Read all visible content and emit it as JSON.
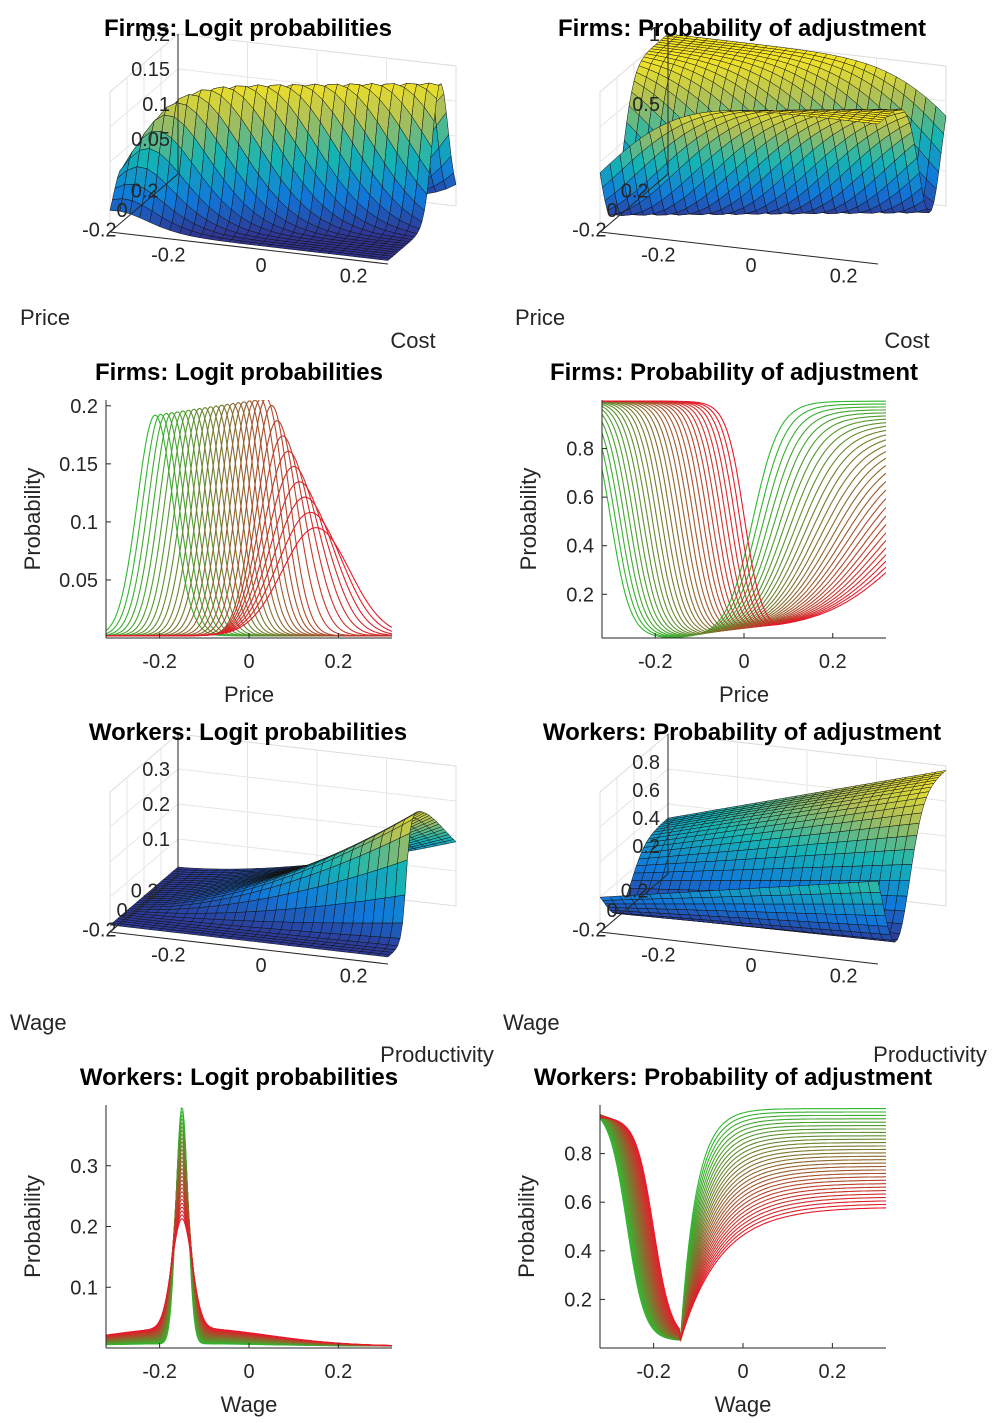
{
  "chart_data": [
    {
      "type": "surface",
      "title": "Firms: Logit probabilities",
      "xlabel": "Cost",
      "ylabel": "Price",
      "x_ticks": [
        "-0.2",
        "0",
        "0.2"
      ],
      "y_ticks": [
        "-0.2",
        "0",
        "0.2"
      ],
      "z_ticks": [
        "0.05",
        "0.1",
        "0.15",
        "0.2"
      ],
      "x_range": [
        -0.3,
        0.3
      ],
      "y_range": [
        -0.3,
        0.3
      ],
      "z_range": [
        0,
        0.2
      ],
      "colormap": "parula",
      "grid": true
    },
    {
      "type": "surface",
      "title": "Firms: Probability of adjustment",
      "xlabel": "Cost",
      "ylabel": "Price",
      "x_ticks": [
        "-0.2",
        "0",
        "0.2"
      ],
      "y_ticks": [
        "-0.2",
        "0",
        "0.2"
      ],
      "z_ticks": [
        "0.5",
        "1"
      ],
      "x_range": [
        -0.3,
        0.3
      ],
      "y_range": [
        -0.3,
        0.3
      ],
      "z_range": [
        0,
        1
      ],
      "colormap": "parula",
      "grid": true
    },
    {
      "type": "line",
      "title": "Firms: Logit probabilities",
      "xlabel": "Price",
      "ylabel": "Probability",
      "x_ticks": [
        "-0.2",
        "0",
        "0.2"
      ],
      "y_ticks": [
        "0.05",
        "0.1",
        "0.15",
        "0.2"
      ],
      "xlim": [
        -0.32,
        0.32
      ],
      "ylim": [
        0,
        0.205
      ],
      "series_count": 30,
      "color_gradient": [
        "#2fb82f",
        "#e8182a"
      ],
      "peak_x_range": [
        -0.21,
        0.15
      ],
      "peak_y_range": [
        0.19,
        0.093
      ],
      "series_note": "shapes only"
    },
    {
      "type": "line",
      "title": "Firms: Probability of adjustment",
      "xlabel": "Price",
      "ylabel": "Probability",
      "x_ticks": [
        "-0.2",
        "0",
        "0.2"
      ],
      "y_ticks": [
        "0.2",
        "0.4",
        "0.6",
        "0.8"
      ],
      "xlim": [
        -0.32,
        0.32
      ],
      "ylim": [
        0.02,
        1.0
      ],
      "series_count": 30,
      "color_gradient": [
        "#2fb82f",
        "#e8182a"
      ]
    },
    {
      "type": "surface",
      "title": "Workers: Logit probabilities",
      "xlabel": "Productivity",
      "ylabel": "Wage",
      "x_ticks": [
        "-0.2",
        "0",
        "0.2"
      ],
      "y_ticks": [
        "-0.2",
        "0",
        "0.2"
      ],
      "z_ticks": [
        "0.1",
        "0.2",
        "0.3"
      ],
      "x_range": [
        -0.3,
        0.3
      ],
      "y_range": [
        -0.3,
        0.3
      ],
      "z_range": [
        0,
        0.4
      ],
      "colormap": "parula",
      "grid": true
    },
    {
      "type": "surface",
      "title": "Workers: Probability of adjustment",
      "xlabel": "Productivity",
      "ylabel": "Wage",
      "x_ticks": [
        "-0.2",
        "0",
        "0.2"
      ],
      "y_ticks": [
        "-0.2",
        "0",
        "0.2"
      ],
      "z_ticks": [
        "0.2",
        "0.4",
        "0.6",
        "0.8"
      ],
      "x_range": [
        -0.3,
        0.3
      ],
      "y_range": [
        -0.3,
        0.3
      ],
      "z_range": [
        0,
        1
      ],
      "colormap": "parula",
      "grid": true
    },
    {
      "type": "line",
      "title": "Workers: Logit probabilities",
      "xlabel": "Wage",
      "ylabel": "Probability",
      "x_ticks": [
        "-0.2",
        "0",
        "0.2"
      ],
      "y_ticks": [
        "0.1",
        "0.2",
        "0.3"
      ],
      "xlim": [
        -0.32,
        0.32
      ],
      "ylim": [
        0,
        0.4
      ],
      "series_count": 30,
      "color_gradient": [
        "#2fb82f",
        "#e8182a"
      ]
    },
    {
      "type": "line",
      "title": "Workers: Probability of adjustment",
      "xlabel": "Wage",
      "ylabel": "Probability",
      "x_ticks": [
        "-0.2",
        "0",
        "0.2"
      ],
      "y_ticks": [
        "0.2",
        "0.4",
        "0.6",
        "0.8"
      ],
      "xlim": [
        -0.32,
        0.32
      ],
      "ylim": [
        0,
        1.0
      ],
      "series_count": 30,
      "color_gradient": [
        "#2fb82f",
        "#e8182a"
      ],
      "min_x": -0.14
    }
  ]
}
